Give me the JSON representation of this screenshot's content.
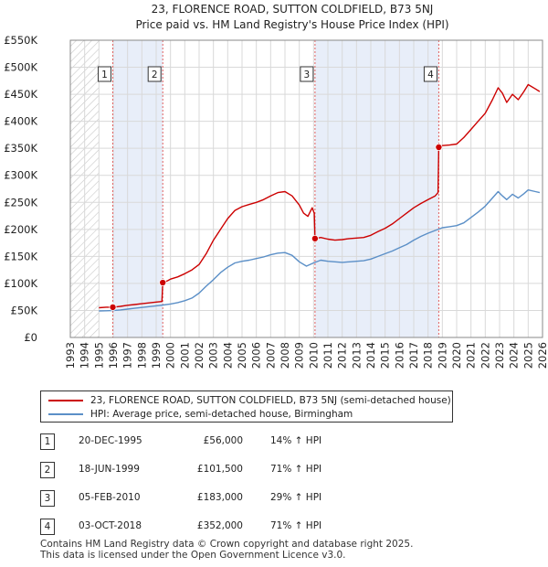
{
  "chart_data": {
    "type": "line",
    "title": "23, FLORENCE ROAD, SUTTON COLDFIELD, B73 5NJ",
    "subtitle": "Price paid vs. HM Land Registry's House Price Index (HPI)",
    "xlim": [
      1993,
      2026
    ],
    "ylim": [
      0,
      550000
    ],
    "x_ticks": [
      "1993",
      "1994",
      "1995",
      "1996",
      "1997",
      "1998",
      "1999",
      "2000",
      "2001",
      "2002",
      "2003",
      "2004",
      "2005",
      "2006",
      "2007",
      "2008",
      "2009",
      "2010",
      "2011",
      "2012",
      "2013",
      "2014",
      "2015",
      "2016",
      "2017",
      "2018",
      "2019",
      "2020",
      "2021",
      "2022",
      "2023",
      "2024",
      "2025",
      "2026"
    ],
    "y_ticks": [
      {
        "value": 0,
        "label": "£0"
      },
      {
        "value": 50000,
        "label": "£50K"
      },
      {
        "value": 100000,
        "label": "£100K"
      },
      {
        "value": 150000,
        "label": "£150K"
      },
      {
        "value": 200000,
        "label": "£200K"
      },
      {
        "value": 250000,
        "label": "£250K"
      },
      {
        "value": 300000,
        "label": "£300K"
      },
      {
        "value": 350000,
        "label": "£350K"
      },
      {
        "value": 400000,
        "label": "£400K"
      },
      {
        "value": 450000,
        "label": "£450K"
      },
      {
        "value": 500000,
        "label": "£500K"
      },
      {
        "value": 550000,
        "label": "£550K"
      }
    ],
    "hatched_range": [
      1993,
      1995
    ],
    "shaded_spans": [
      [
        1995.97,
        1999.46
      ],
      [
        2010.1,
        2018.75
      ]
    ],
    "series": [
      {
        "name": "23, FLORENCE ROAD, SUTTON COLDFIELD, B73 5NJ (semi-detached house)",
        "color": "#cc0000",
        "points": [
          [
            1995.0,
            55000
          ],
          [
            1995.5,
            56000
          ],
          [
            1995.97,
            56000
          ],
          [
            1996.5,
            57500
          ],
          [
            1997.0,
            59500
          ],
          [
            1997.5,
            61000
          ],
          [
            1998.0,
            62500
          ],
          [
            1998.5,
            64000
          ],
          [
            1999.0,
            65500
          ],
          [
            1999.4,
            66500
          ],
          [
            1999.46,
            101500
          ],
          [
            1999.8,
            105000
          ],
          [
            2000.0,
            108000
          ],
          [
            2000.5,
            112000
          ],
          [
            2001.0,
            118000
          ],
          [
            2001.5,
            125000
          ],
          [
            2002.0,
            135000
          ],
          [
            2002.5,
            155000
          ],
          [
            2003.0,
            180000
          ],
          [
            2003.5,
            200000
          ],
          [
            2004.0,
            220000
          ],
          [
            2004.5,
            235000
          ],
          [
            2005.0,
            242000
          ],
          [
            2005.5,
            246000
          ],
          [
            2006.0,
            250000
          ],
          [
            2006.5,
            255000
          ],
          [
            2007.0,
            262000
          ],
          [
            2007.5,
            268000
          ],
          [
            2008.0,
            270000
          ],
          [
            2008.5,
            262000
          ],
          [
            2009.0,
            245000
          ],
          [
            2009.3,
            230000
          ],
          [
            2009.6,
            224000
          ],
          [
            2009.9,
            240000
          ],
          [
            2010.05,
            230000
          ],
          [
            2010.1,
            183000
          ],
          [
            2010.5,
            185000
          ],
          [
            2011.0,
            182000
          ],
          [
            2011.5,
            180000
          ],
          [
            2012.0,
            181000
          ],
          [
            2012.5,
            183000
          ],
          [
            2013.0,
            184000
          ],
          [
            2013.5,
            185000
          ],
          [
            2014.0,
            189000
          ],
          [
            2014.5,
            196000
          ],
          [
            2015.0,
            202000
          ],
          [
            2015.5,
            210000
          ],
          [
            2016.0,
            220000
          ],
          [
            2016.5,
            230000
          ],
          [
            2017.0,
            240000
          ],
          [
            2017.5,
            248000
          ],
          [
            2018.0,
            255000
          ],
          [
            2018.5,
            262000
          ],
          [
            2018.7,
            268000
          ],
          [
            2018.75,
            352000
          ],
          [
            2019.0,
            355000
          ],
          [
            2019.5,
            356000
          ],
          [
            2020.0,
            358000
          ],
          [
            2020.5,
            370000
          ],
          [
            2021.0,
            385000
          ],
          [
            2021.5,
            400000
          ],
          [
            2022.0,
            415000
          ],
          [
            2022.5,
            440000
          ],
          [
            2022.9,
            462000
          ],
          [
            2023.2,
            452000
          ],
          [
            2023.5,
            435000
          ],
          [
            2023.9,
            450000
          ],
          [
            2024.3,
            440000
          ],
          [
            2024.7,
            455000
          ],
          [
            2025.0,
            468000
          ],
          [
            2025.5,
            460000
          ],
          [
            2025.8,
            455000
          ]
        ]
      },
      {
        "name": "HPI: Average price, semi-detached house, Birmingham",
        "color": "#5b8fc7",
        "points": [
          [
            1995.0,
            49000
          ],
          [
            1995.5,
            49500
          ],
          [
            1996.0,
            50000
          ],
          [
            1996.5,
            51000
          ],
          [
            1997.0,
            52500
          ],
          [
            1997.5,
            54000
          ],
          [
            1998.0,
            55500
          ],
          [
            1998.5,
            57000
          ],
          [
            1999.0,
            58500
          ],
          [
            1999.5,
            60000
          ],
          [
            2000.0,
            62000
          ],
          [
            2000.5,
            64500
          ],
          [
            2001.0,
            68000
          ],
          [
            2001.5,
            73000
          ],
          [
            2002.0,
            82000
          ],
          [
            2002.5,
            95000
          ],
          [
            2003.0,
            107000
          ],
          [
            2003.5,
            120000
          ],
          [
            2004.0,
            130000
          ],
          [
            2004.5,
            138000
          ],
          [
            2005.0,
            141000
          ],
          [
            2005.5,
            143000
          ],
          [
            2006.0,
            146000
          ],
          [
            2006.5,
            149000
          ],
          [
            2007.0,
            153000
          ],
          [
            2007.5,
            156000
          ],
          [
            2008.0,
            157000
          ],
          [
            2008.5,
            152000
          ],
          [
            2009.0,
            140000
          ],
          [
            2009.5,
            132000
          ],
          [
            2010.0,
            138000
          ],
          [
            2010.5,
            143000
          ],
          [
            2011.0,
            141000
          ],
          [
            2011.5,
            140000
          ],
          [
            2012.0,
            139000
          ],
          [
            2012.5,
            140000
          ],
          [
            2013.0,
            141000
          ],
          [
            2013.5,
            142000
          ],
          [
            2014.0,
            145000
          ],
          [
            2014.5,
            150000
          ],
          [
            2015.0,
            155000
          ],
          [
            2015.5,
            160000
          ],
          [
            2016.0,
            166000
          ],
          [
            2016.5,
            172000
          ],
          [
            2017.0,
            180000
          ],
          [
            2017.5,
            187000
          ],
          [
            2018.0,
            193000
          ],
          [
            2018.5,
            198000
          ],
          [
            2019.0,
            203000
          ],
          [
            2019.5,
            205000
          ],
          [
            2020.0,
            207000
          ],
          [
            2020.5,
            212000
          ],
          [
            2021.0,
            222000
          ],
          [
            2021.5,
            232000
          ],
          [
            2022.0,
            243000
          ],
          [
            2022.5,
            258000
          ],
          [
            2022.9,
            270000
          ],
          [
            2023.2,
            262000
          ],
          [
            2023.5,
            255000
          ],
          [
            2023.9,
            265000
          ],
          [
            2024.3,
            258000
          ],
          [
            2024.7,
            266000
          ],
          [
            2025.0,
            273000
          ],
          [
            2025.5,
            270000
          ],
          [
            2025.8,
            268000
          ]
        ]
      }
    ],
    "sales": [
      {
        "n": "1",
        "x": 1995.97,
        "y": 56000
      },
      {
        "n": "2",
        "x": 1999.46,
        "y": 101500
      },
      {
        "n": "3",
        "x": 2010.1,
        "y": 183000
      },
      {
        "n": "4",
        "x": 2018.75,
        "y": 352000
      }
    ]
  },
  "legend": {
    "property": "23, FLORENCE ROAD, SUTTON COLDFIELD, B73 5NJ (semi-detached house)",
    "hpi": "HPI: Average price, semi-detached house, Birmingham",
    "property_color": "#cc0000",
    "hpi_color": "#5b8fc7"
  },
  "sales_table": [
    {
      "n": "1",
      "date": "20-DEC-1995",
      "price": "£56,000",
      "hpi": "14% ↑ HPI"
    },
    {
      "n": "2",
      "date": "18-JUN-1999",
      "price": "£101,500",
      "hpi": "71% ↑ HPI"
    },
    {
      "n": "3",
      "date": "05-FEB-2010",
      "price": "£183,000",
      "hpi": "29% ↑ HPI"
    },
    {
      "n": "4",
      "date": "03-OCT-2018",
      "price": "£352,000",
      "hpi": "71% ↑ HPI"
    }
  ],
  "footer": {
    "line1": "Contains HM Land Registry data © Crown copyright and database right 2025.",
    "line2": "This data is licensed under the Open Government Licence v3.0."
  }
}
